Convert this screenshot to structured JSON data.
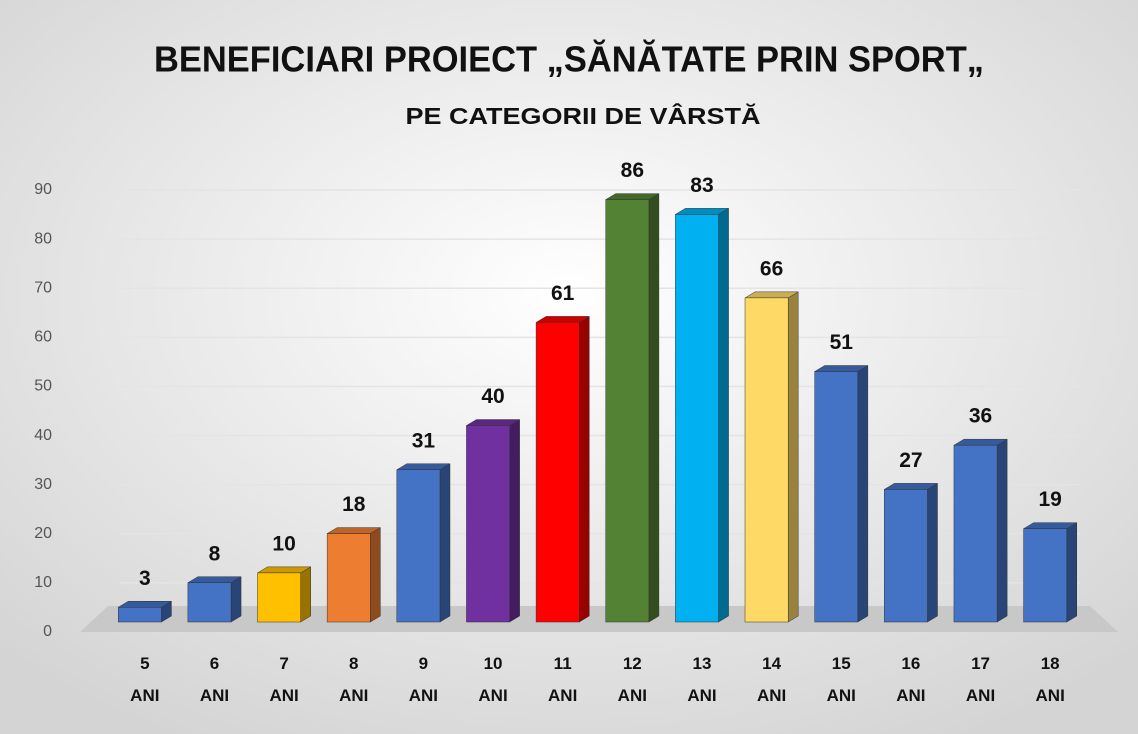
{
  "chart_data": {
    "type": "bar3d",
    "title": "BENEFICIARI PROIECT „SĂNĂTATE PRIN SPORT„",
    "subtitle": "PE CATEGORII DE VÂRSTĂ",
    "categories": [
      "5 ANI",
      "6 ANI",
      "7 ANI",
      "8 ANI",
      "9 ANI",
      "10 ANI",
      "11 ANI",
      "12 ANI",
      "13 ANI",
      "14 ANI",
      "15 ANI",
      "16 ANI",
      "17 ANI",
      "18 ANI"
    ],
    "values": [
      3,
      8,
      10,
      18,
      31,
      40,
      61,
      86,
      83,
      66,
      51,
      27,
      36,
      19
    ],
    "colors": [
      "#4472c4",
      "#4472c4",
      "#ffc000",
      "#ed7d31",
      "#4472c4",
      "#7030a0",
      "#ff0000",
      "#548235",
      "#00b0f0",
      "#ffd966",
      "#4472c4",
      "#4472c4",
      "#4472c4",
      "#4472c4"
    ],
    "ylim": [
      0,
      90
    ],
    "yticks": [
      0,
      10,
      20,
      30,
      40,
      50,
      60,
      70,
      80,
      90
    ],
    "grid": true
  }
}
